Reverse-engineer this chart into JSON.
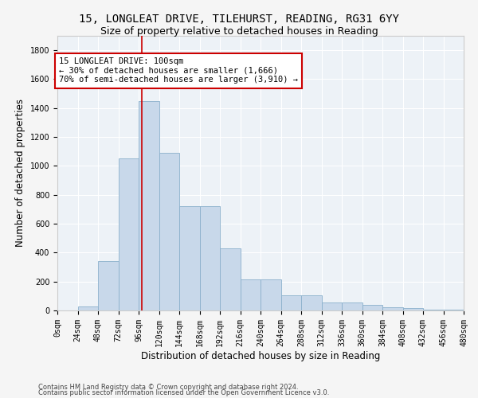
{
  "title1": "15, LONGLEAT DRIVE, TILEHURST, READING, RG31 6YY",
  "title2": "Size of property relative to detached houses in Reading",
  "xlabel": "Distribution of detached houses by size in Reading",
  "ylabel": "Number of detached properties",
  "bar_color": "#c8d8ea",
  "bar_edge_color": "#8ab0cc",
  "bin_width": 24,
  "num_bins": 20,
  "bar_heights": [
    0,
    30,
    340,
    1050,
    1450,
    1090,
    720,
    720,
    430,
    215,
    215,
    105,
    105,
    55,
    55,
    40,
    20,
    15,
    5,
    3
  ],
  "property_line_x": 100,
  "property_line_color": "#cc0000",
  "ylim": [
    0,
    1900
  ],
  "yticks": [
    0,
    200,
    400,
    600,
    800,
    1000,
    1200,
    1400,
    1600,
    1800
  ],
  "annotation_text": "15 LONGLEAT DRIVE: 100sqm\n← 30% of detached houses are smaller (1,666)\n70% of semi-detached houses are larger (3,910) →",
  "annotation_box_color": "#ffffff",
  "annotation_box_edge": "#cc0000",
  "footer1": "Contains HM Land Registry data © Crown copyright and database right 2024.",
  "footer2": "Contains public sector information licensed under the Open Government Licence v3.0.",
  "bg_color": "#edf2f7",
  "grid_color": "#ffffff",
  "title1_fontsize": 10,
  "title2_fontsize": 9,
  "tick_label_fontsize": 7,
  "axis_label_fontsize": 8.5,
  "footer_fontsize": 6,
  "annotation_fontsize": 7.5
}
